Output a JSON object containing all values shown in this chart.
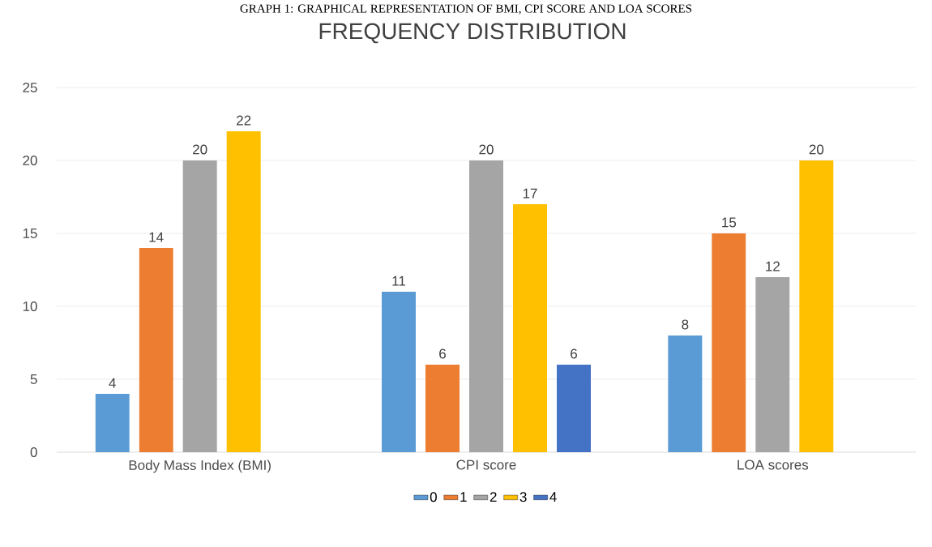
{
  "chart_data": {
    "type": "bar",
    "title": "GRAPH 1: GRAPHICAL REPRESENTATION OF BMI, CPI SCORE AND LOA SCORES",
    "subtitle": "FREQUENCY DISTRIBUTION",
    "categories": [
      "Body Mass Index (BMI)",
      "CPI score",
      "LOA scores"
    ],
    "series": [
      {
        "name": "0",
        "color": "#5b9bd5",
        "values": [
          4,
          11,
          8
        ]
      },
      {
        "name": "1",
        "color": "#ed7d31",
        "values": [
          14,
          6,
          15
        ]
      },
      {
        "name": "2",
        "color": "#a5a5a5",
        "values": [
          20,
          20,
          12
        ]
      },
      {
        "name": "3",
        "color": "#ffc000",
        "values": [
          22,
          17,
          20
        ]
      },
      {
        "name": "4",
        "color": "#4472c4",
        "values": [
          null,
          6,
          null
        ]
      }
    ],
    "ylim": [
      0,
      25
    ],
    "yticks": [
      0,
      5,
      10,
      15,
      20,
      25
    ],
    "grid": "y",
    "legend": "bottom",
    "data_labels": true
  }
}
